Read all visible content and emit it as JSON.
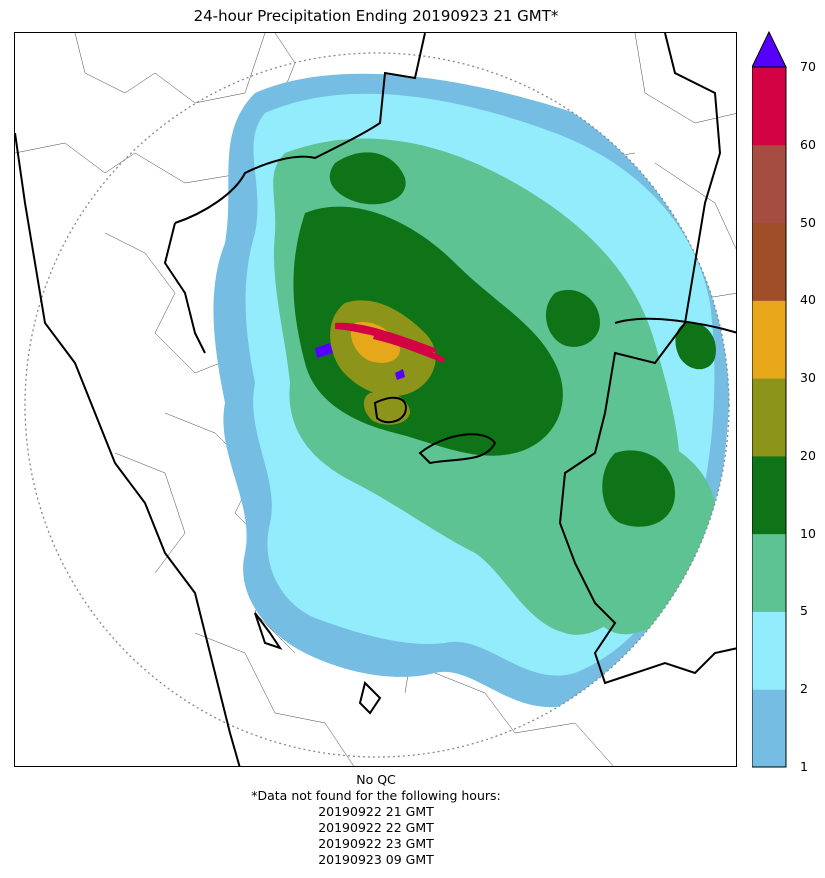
{
  "title": "24-hour Precipitation Ending 20190923 21 GMT*",
  "colorbar": {
    "levels": [
      {
        "label": "1",
        "color": "#75bde3"
      },
      {
        "label": "2",
        "color": "#93ecfb"
      },
      {
        "label": "5",
        "color": "#5dc393"
      },
      {
        "label": "10",
        "color": "#0f7418"
      },
      {
        "label": "20",
        "color": "#8c9519"
      },
      {
        "label": "30",
        "color": "#e6a81a"
      },
      {
        "label": "40",
        "color": "#9e4f27"
      },
      {
        "label": "50",
        "color": "#a64d42"
      },
      {
        "label": "60",
        "color": "#d20244"
      },
      {
        "label": "70",
        "color": "#5500ff"
      }
    ],
    "extend": "max"
  },
  "footer": {
    "qc": "No QC",
    "missing_header": "*Data not found for the following hours:",
    "missing_hours": [
      "20190922 21 GMT",
      "20190922 22 GMT",
      "20190922 23 GMT",
      "20190923 09 GMT"
    ]
  }
}
